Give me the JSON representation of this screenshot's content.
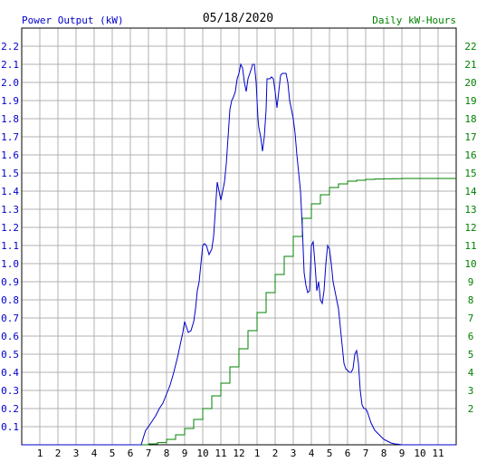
{
  "chart_data": {
    "type": "line",
    "title": "05/18/2020",
    "y_left_label": "Power Output (kW)",
    "y_right_label": "Daily kW-Hours",
    "x_ticks": [
      "1",
      "2",
      "3",
      "4",
      "5",
      "6",
      "7",
      "8",
      "9",
      "10",
      "11",
      "12",
      "1",
      "2",
      "3",
      "4",
      "5",
      "6",
      "7",
      "8",
      "9",
      "10",
      "11"
    ],
    "xlim": [
      0,
      24
    ],
    "ylim_left": [
      0,
      2.3
    ],
    "ylim_right": [
      0,
      23
    ],
    "y_left_ticks": [
      0.1,
      0.2,
      0.3,
      0.4,
      0.5,
      0.6,
      0.7,
      0.8,
      0.9,
      1.0,
      1.1,
      1.2,
      1.3,
      1.4,
      1.5,
      1.6,
      1.7,
      1.8,
      1.9,
      2.0,
      2.1,
      2.2
    ],
    "y_right_ticks": [
      2,
      3,
      4,
      5,
      6,
      7,
      8,
      9,
      10,
      11,
      12,
      13,
      14,
      15,
      16,
      17,
      18,
      19,
      20,
      21,
      22
    ],
    "grid": true,
    "colors": {
      "power": "#0000cc",
      "energy": "#008000",
      "grid": "#b0b0b0",
      "axis": "#000000"
    },
    "series": [
      {
        "name": "Power Output (kW)",
        "axis": "left",
        "x": [
          0,
          6.6,
          6.75,
          6.85,
          7.0,
          7.2,
          7.4,
          7.6,
          7.8,
          8.0,
          8.2,
          8.4,
          8.6,
          8.75,
          8.9,
          9.0,
          9.1,
          9.2,
          9.35,
          9.5,
          9.6,
          9.7,
          9.8,
          9.9,
          10.0,
          10.1,
          10.2,
          10.35,
          10.5,
          10.6,
          10.7,
          10.8,
          10.9,
          11.0,
          11.1,
          11.2,
          11.3,
          11.4,
          11.5,
          11.6,
          11.7,
          11.8,
          11.9,
          12.0,
          12.1,
          12.2,
          12.3,
          12.4,
          12.5,
          12.6,
          12.7,
          12.75,
          12.85,
          12.95,
          13.0,
          13.05,
          13.1,
          13.2,
          13.3,
          13.4,
          13.5,
          13.55,
          13.6,
          13.7,
          13.8,
          13.9,
          14.0,
          14.1,
          14.2,
          14.3,
          14.4,
          14.5,
          14.6,
          14.7,
          14.8,
          14.9,
          15.0,
          15.1,
          15.2,
          15.3,
          15.4,
          15.5,
          15.6,
          15.7,
          15.8,
          15.9,
          16.0,
          16.1,
          16.2,
          16.3,
          16.4,
          16.5,
          16.6,
          16.7,
          16.8,
          16.9,
          17.0,
          17.1,
          17.2,
          17.3,
          17.4,
          17.5,
          17.6,
          17.7,
          17.8,
          17.9,
          18.0,
          18.1,
          18.2,
          18.3,
          18.4,
          18.5,
          18.6,
          18.7,
          18.8,
          18.9,
          19.0,
          19.1,
          19.2,
          19.3,
          19.4,
          19.5,
          19.6,
          19.7,
          19.8,
          19.9,
          20.0,
          20.2,
          20.4,
          20.6,
          20.8,
          21.0,
          21.5,
          24
        ],
        "values": [
          0,
          0,
          0.05,
          0.08,
          0.1,
          0.13,
          0.16,
          0.2,
          0.23,
          0.28,
          0.33,
          0.4,
          0.48,
          0.55,
          0.62,
          0.68,
          0.65,
          0.62,
          0.63,
          0.68,
          0.75,
          0.85,
          0.9,
          1.0,
          1.1,
          1.11,
          1.1,
          1.05,
          1.08,
          1.15,
          1.3,
          1.45,
          1.4,
          1.35,
          1.4,
          1.45,
          1.55,
          1.7,
          1.85,
          1.9,
          1.92,
          1.95,
          2.02,
          2.05,
          2.1,
          2.08,
          2.0,
          1.95,
          2.02,
          2.05,
          2.08,
          2.1,
          2.1,
          2.0,
          1.9,
          1.8,
          1.75,
          1.7,
          1.62,
          1.7,
          1.85,
          2.02,
          2.02,
          2.02,
          2.03,
          2.02,
          1.95,
          1.86,
          1.95,
          2.04,
          2.05,
          2.05,
          2.05,
          2.0,
          1.9,
          1.85,
          1.8,
          1.72,
          1.6,
          1.5,
          1.4,
          1.2,
          0.95,
          0.88,
          0.84,
          0.85,
          1.1,
          1.12,
          1.0,
          0.85,
          0.9,
          0.8,
          0.78,
          0.85,
          1.0,
          1.1,
          1.08,
          1.0,
          0.9,
          0.85,
          0.8,
          0.75,
          0.65,
          0.55,
          0.45,
          0.42,
          0.41,
          0.4,
          0.4,
          0.42,
          0.5,
          0.52,
          0.45,
          0.3,
          0.22,
          0.2,
          0.2,
          0.18,
          0.15,
          0.12,
          0.1,
          0.08,
          0.07,
          0.06,
          0.05,
          0.04,
          0.03,
          0.02,
          0.01,
          0.005,
          0.003,
          0,
          0,
          0
        ]
      },
      {
        "name": "Daily kW-Hours",
        "axis": "right",
        "x": [
          0,
          6.6,
          7.0,
          7.5,
          8.0,
          8.5,
          9.0,
          9.5,
          10.0,
          10.5,
          11.0,
          11.5,
          12.0,
          12.5,
          13.0,
          13.5,
          14.0,
          14.5,
          15.0,
          15.5,
          16.0,
          16.5,
          17.0,
          17.5,
          18.0,
          18.5,
          19.0,
          19.5,
          20.0,
          20.5,
          21.0,
          24
        ],
        "values": [
          0,
          0,
          0.05,
          0.12,
          0.3,
          0.55,
          0.9,
          1.4,
          2.0,
          2.7,
          3.4,
          4.3,
          5.3,
          6.3,
          7.3,
          8.4,
          9.4,
          10.4,
          11.5,
          12.5,
          13.3,
          13.8,
          14.2,
          14.4,
          14.55,
          14.6,
          14.65,
          14.67,
          14.68,
          14.69,
          14.7,
          14.7
        ]
      }
    ]
  }
}
